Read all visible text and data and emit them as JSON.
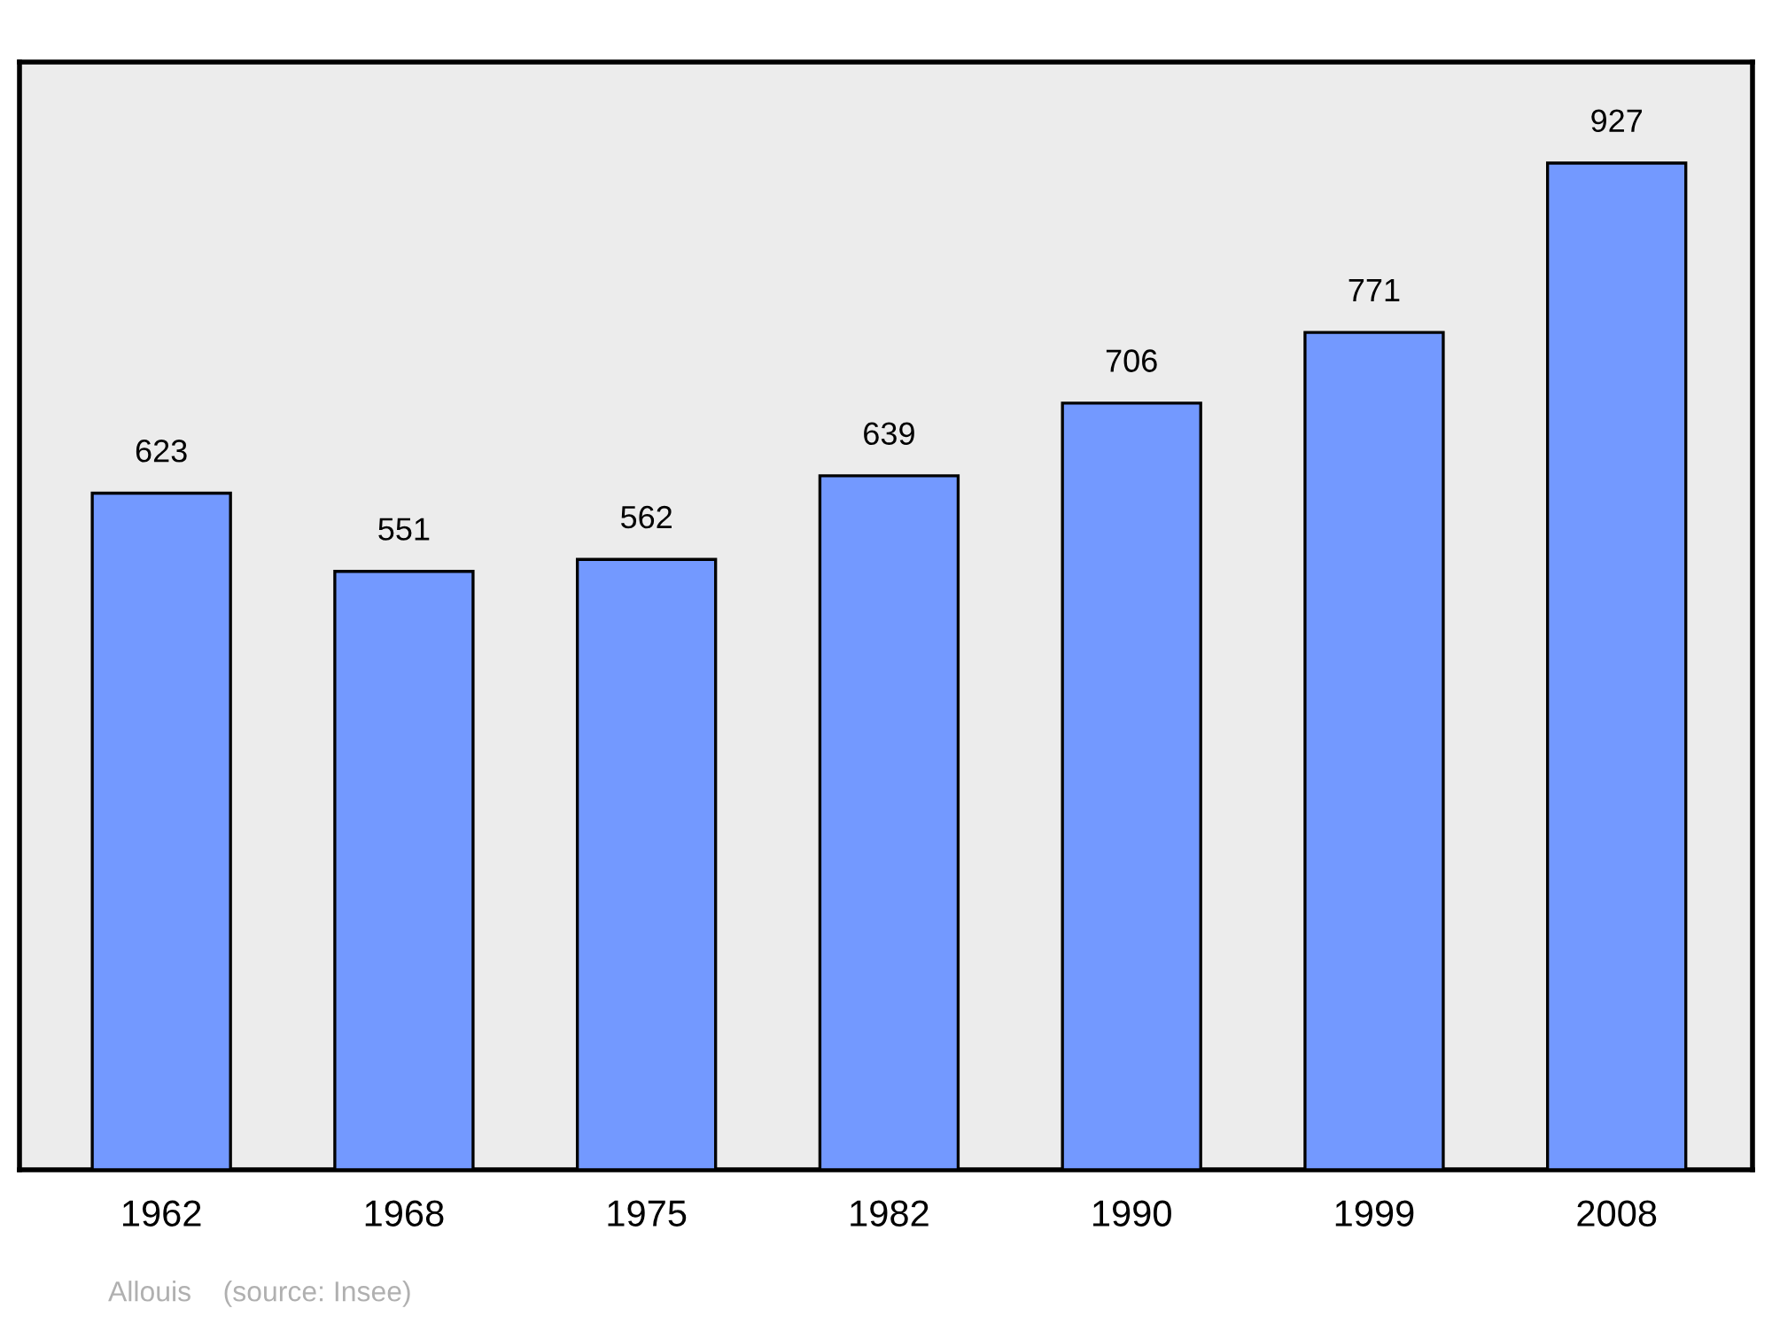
{
  "chart_data": {
    "type": "bar",
    "categories": [
      "1962",
      "1968",
      "1975",
      "1982",
      "1990",
      "1999",
      "2008"
    ],
    "values": [
      623,
      551,
      562,
      639,
      706,
      771,
      927
    ],
    "color": "#7399ff",
    "ylim": [
      0,
      1020
    ],
    "data_labels": true,
    "tick_labels": "x",
    "grid": false,
    "annotations": [
      "Allouis    (source: Insee)"
    ]
  }
}
